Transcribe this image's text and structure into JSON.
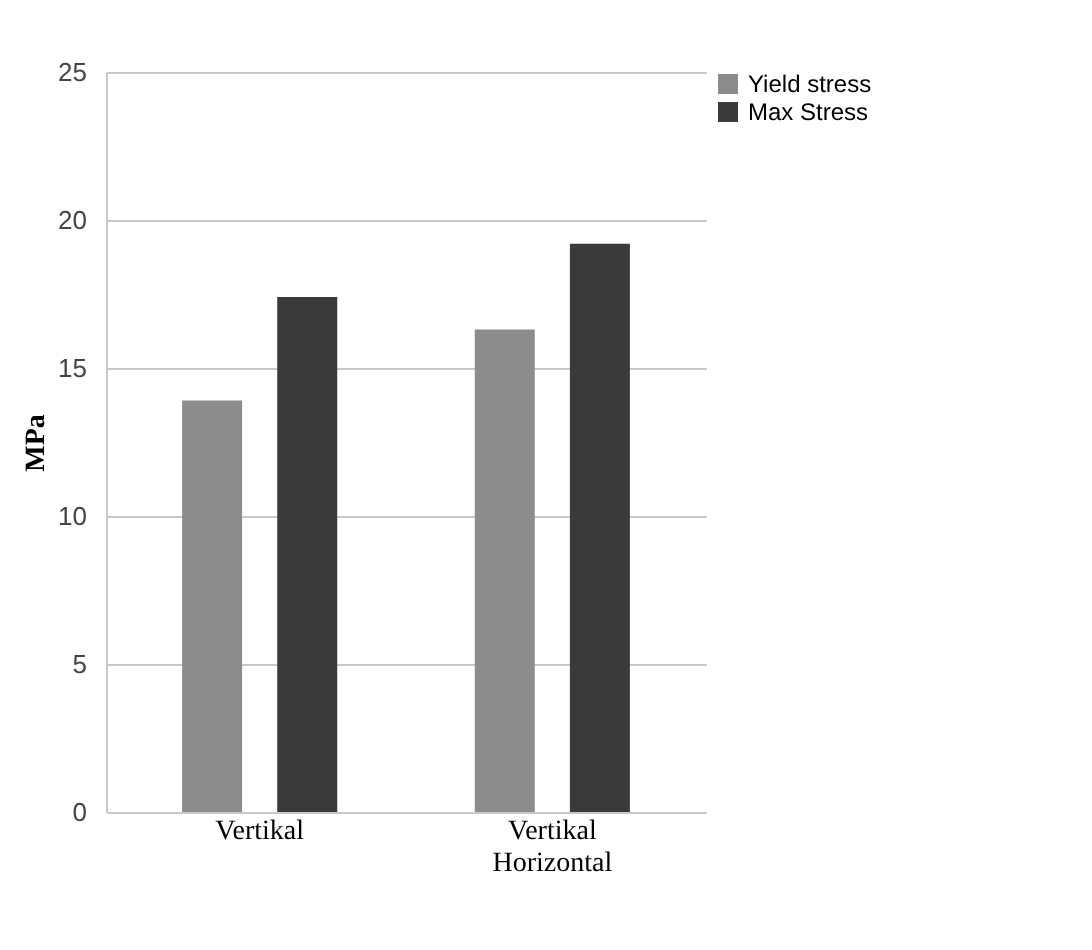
{
  "chart_data": {
    "type": "bar",
    "ylabel": "MPa",
    "categories": [
      "Vertikal",
      "Vertikal Horizontal"
    ],
    "series": [
      {
        "name": "Yield stress",
        "color": "#8c8c8c",
        "values": [
          13.9,
          16.3
        ]
      },
      {
        "name": "Max Stress",
        "color": "#3a3a3a",
        "values": [
          17.4,
          19.2
        ]
      }
    ],
    "ylim": [
      0,
      25
    ],
    "yticks": [
      0,
      5,
      10,
      15,
      20,
      25
    ],
    "grid": "y",
    "legend": "right"
  }
}
